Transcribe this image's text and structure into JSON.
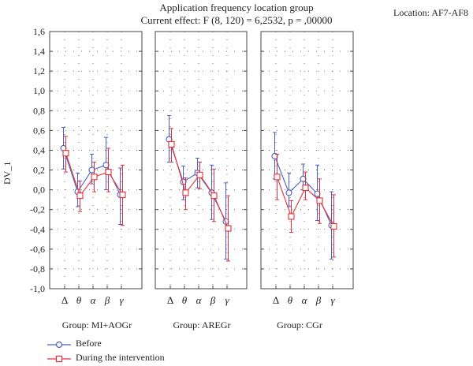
{
  "header": {
    "title": "Application frequency location group",
    "subtitle": "Current effect: F (8, 120) = 6,2532, p = ,00000",
    "location": "Location: AF7-AF8"
  },
  "colors": {
    "before": "#4a5fc1",
    "during": "#e0303a"
  },
  "legend": {
    "before_label": "Before",
    "during_label": "During the intervention"
  },
  "chart_data": {
    "type": "line",
    "ylabel": "DV_1",
    "ylim": [
      -1.0,
      1.6
    ],
    "yticks": [
      "1,6",
      "1,4",
      "1,2",
      "1,0",
      "0,8",
      "0,6",
      "0,4",
      "0,2",
      "0,0",
      "-0,2",
      "-0,4",
      "-0,6",
      "-0,8",
      "-1,0"
    ],
    "grid": "dotted",
    "categories": [
      "Δ",
      "θ",
      "α",
      "β",
      "γ"
    ],
    "panels": [
      {
        "group_label": "Group: MI+AOGr",
        "series": [
          {
            "name": "Before",
            "values": [
              0.42,
              -0.02,
              0.2,
              0.25,
              -0.05
            ],
            "err_low": [
              0.21,
              -0.17,
              0.06,
              0.0,
              -0.35
            ],
            "err_high": [
              0.63,
              0.17,
              0.36,
              0.53,
              0.22
            ]
          },
          {
            "name": "During the intervention",
            "values": [
              0.37,
              -0.06,
              0.13,
              0.18,
              -0.05
            ],
            "err_low": [
              0.18,
              -0.22,
              -0.02,
              -0.02,
              -0.36
            ],
            "err_high": [
              0.54,
              0.09,
              0.28,
              0.42,
              0.25
            ]
          }
        ]
      },
      {
        "group_label": "Group: AREGr",
        "series": [
          {
            "name": "Before",
            "values": [
              0.51,
              0.08,
              0.17,
              -0.03,
              -0.32
            ],
            "err_low": [
              0.28,
              -0.1,
              0.02,
              -0.3,
              -0.7
            ],
            "err_high": [
              0.75,
              0.24,
              0.32,
              0.25,
              0.07
            ]
          },
          {
            "name": "During the intervention",
            "values": [
              0.46,
              -0.03,
              0.15,
              -0.06,
              -0.39
            ],
            "err_low": [
              0.28,
              -0.2,
              0.01,
              -0.32,
              -0.72
            ],
            "err_high": [
              0.62,
              0.12,
              0.28,
              0.21,
              -0.06
            ]
          }
        ]
      },
      {
        "group_label": "Group: CGr",
        "series": [
          {
            "name": "Before",
            "values": [
              0.34,
              -0.03,
              0.11,
              -0.04,
              -0.36
            ],
            "err_low": [
              0.11,
              -0.17,
              0.0,
              -0.31,
              -0.7
            ],
            "err_high": [
              0.58,
              0.17,
              0.26,
              0.25,
              -0.02
            ]
          },
          {
            "name": "During the intervention",
            "values": [
              0.13,
              -0.27,
              0.02,
              -0.11,
              -0.37
            ],
            "err_low": [
              -0.1,
              -0.43,
              -0.1,
              -0.34,
              -0.68
            ],
            "err_high": [
              0.36,
              -0.11,
              0.18,
              0.11,
              -0.05
            ]
          }
        ]
      }
    ]
  }
}
